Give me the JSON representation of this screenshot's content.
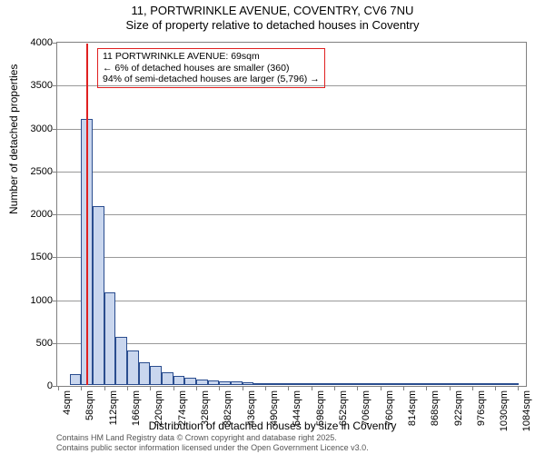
{
  "title": {
    "line1": "11, PORTWRINKLE AVENUE, COVENTRY, CV6 7NU",
    "line2": "Size of property relative to detached houses in Coventry"
  },
  "chart": {
    "type": "bar",
    "y_axis": {
      "label": "Number of detached properties",
      "min": 0,
      "max": 4000,
      "tick_step": 500,
      "label_fontsize": 12
    },
    "x_axis": {
      "label": "Distribution of detached houses by size in Coventry",
      "tick_start": 4,
      "tick_step": 54,
      "tick_count": 21,
      "tick_unit": "sqm",
      "data_min": 0,
      "data_max": 1100,
      "label_fontsize": 12
    },
    "bars": {
      "bin_start": 0,
      "bin_width": 27,
      "values": [
        0,
        130,
        3100,
        2080,
        1080,
        560,
        400,
        260,
        220,
        150,
        110,
        80,
        60,
        50,
        40,
        40,
        30,
        20,
        20,
        15,
        15,
        10,
        10,
        10,
        8,
        8,
        8,
        5,
        5,
        5,
        5,
        5,
        5,
        3,
        3,
        3,
        3,
        3,
        3,
        2
      ],
      "fill_color": "#c9d6ee",
      "border_color": "#2a4d8f"
    },
    "marker": {
      "x_value": 69,
      "color": "#e02020"
    },
    "annotation": {
      "lines": [
        "11 PORTWRINKLE AVENUE: 69sqm",
        "← 6% of detached houses are smaller (360)",
        "94% of semi-detached houses are larger (5,796) →"
      ],
      "border_color": "#e02020",
      "fontsize": 10.5
    },
    "grid_color": "#808080",
    "background_color": "#ffffff"
  },
  "footer": {
    "line1": "Contains HM Land Registry data © Crown copyright and database right 2025.",
    "line2": "Contains public sector information licensed under the Open Government Licence v3.0."
  }
}
